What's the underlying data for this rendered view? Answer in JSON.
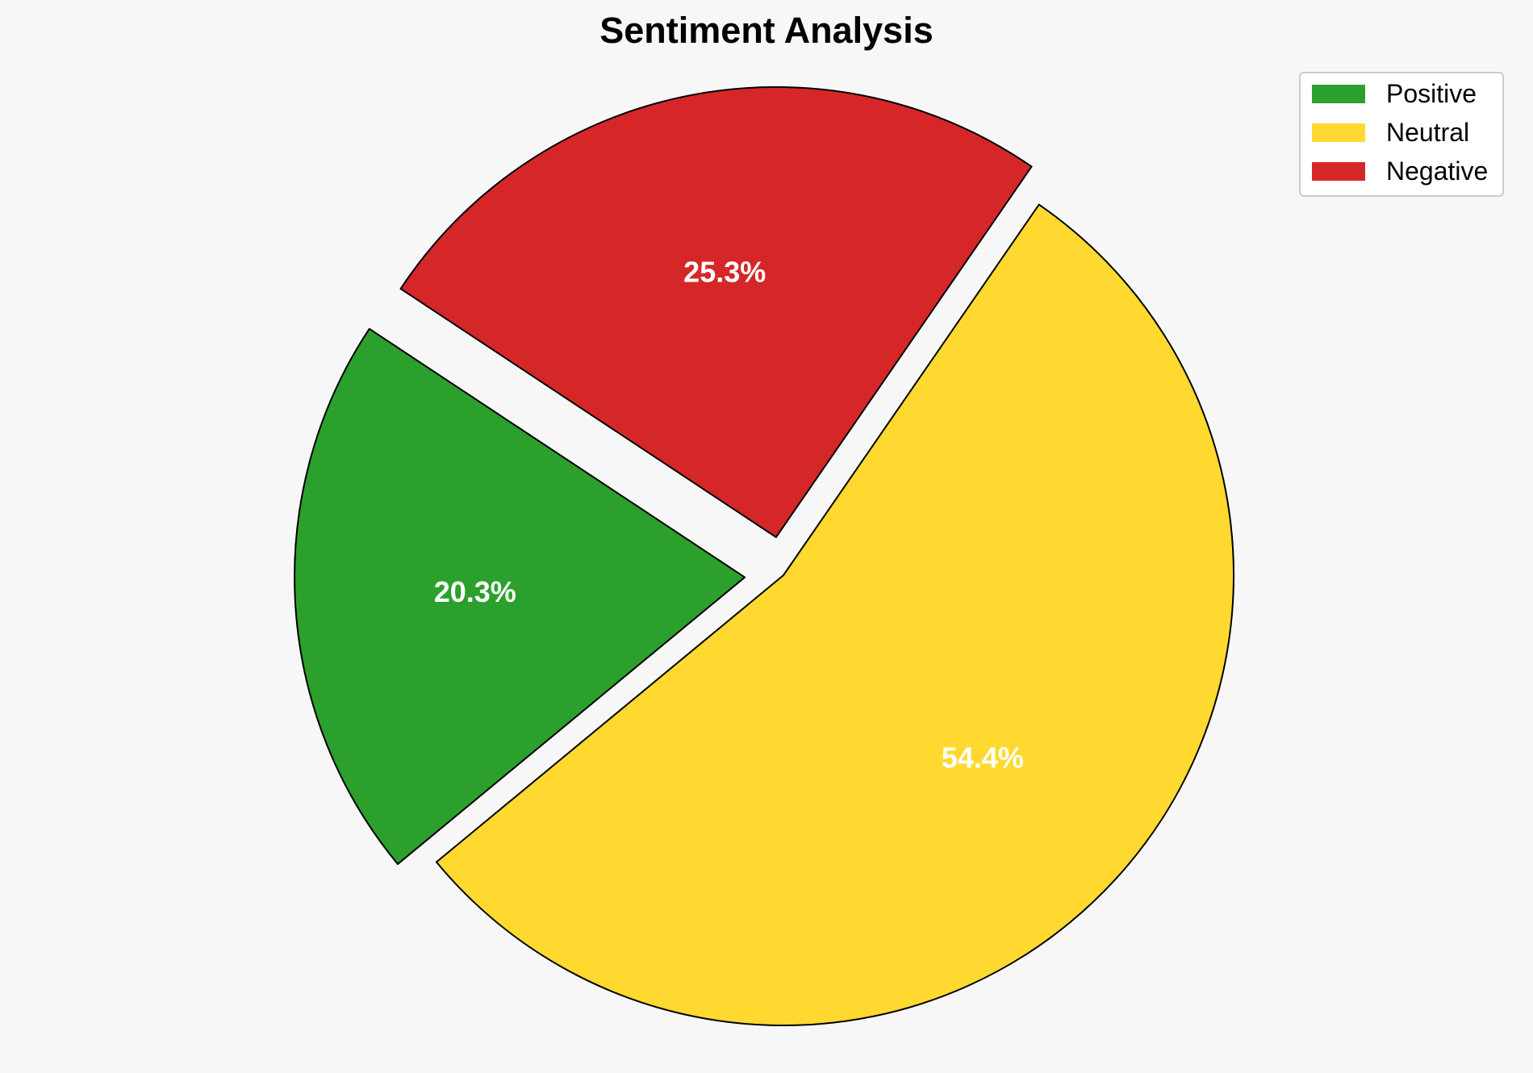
{
  "chart_data": {
    "type": "pie",
    "title": "Sentiment Analysis",
    "categories": [
      "Positive",
      "Neutral",
      "Negative"
    ],
    "values": [
      20.3,
      54.4,
      25.3
    ],
    "value_labels": [
      "20.3%",
      "54.4%",
      "25.3%"
    ],
    "colors": [
      "#2ca02c",
      "#ffd92f",
      "#d62728"
    ],
    "exploded": [
      true,
      false,
      true
    ],
    "start_angle": 146.5,
    "direction": "counterclockwise",
    "legend": {
      "position": "top-right",
      "entries": [
        "Positive",
        "Neutral",
        "Negative"
      ]
    }
  }
}
